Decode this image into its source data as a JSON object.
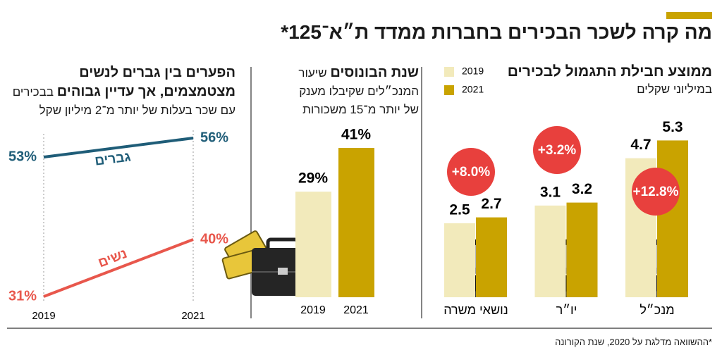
{
  "title": "מה קרה לשכר הבכירים בחברות ממדד ת״א־125*",
  "footnote": "*ההשוואה מדלגת על 2020, שנת הקורונה",
  "chart_data": [
    {
      "type": "bar",
      "title": "ממוצע חבילת התגמול לבכירים",
      "subtitle": "במיליוני שקלים",
      "categories": [
        "מנכ״ל",
        "יו״ר",
        "נושאי משרה"
      ],
      "series": [
        {
          "name": "2019",
          "color": "#f2eabb",
          "values": [
            4.7,
            3.1,
            2.5
          ]
        },
        {
          "name": "2021",
          "color": "#c9a300",
          "values": [
            5.3,
            3.2,
            2.7
          ]
        }
      ],
      "annotations": [
        "+12.8%",
        "+3.2%",
        "+8.0%"
      ],
      "annotation_color": "#e8403d"
    },
    {
      "type": "bar",
      "title": "שנת הבונוסים",
      "subtitle": "שיעור המנכ״לים שקיבלו מענק של יותר מ־15 משכורות",
      "categories": [
        "2019",
        "2021"
      ],
      "values": [
        29,
        41
      ],
      "value_labels": [
        "29%",
        "41%"
      ],
      "colors": [
        "#f2eabb",
        "#c9a300"
      ]
    },
    {
      "type": "line",
      "title": "הפערים בין גברים לנשים מצטמצמים, אך עדיין גבוהים",
      "subtitle": "בבכירים עם שכר בעלות של יותר מ־2 מיליון שקל",
      "categories": [
        "2019",
        "2021"
      ],
      "series": [
        {
          "name": "גברים",
          "color": "#1f5d78",
          "values": [
            53,
            56
          ],
          "value_labels": [
            "53%",
            "56%"
          ]
        },
        {
          "name": "נשים",
          "color": "#e8574c",
          "values": [
            31,
            40
          ],
          "value_labels": [
            "31%",
            "40%"
          ]
        }
      ]
    }
  ]
}
